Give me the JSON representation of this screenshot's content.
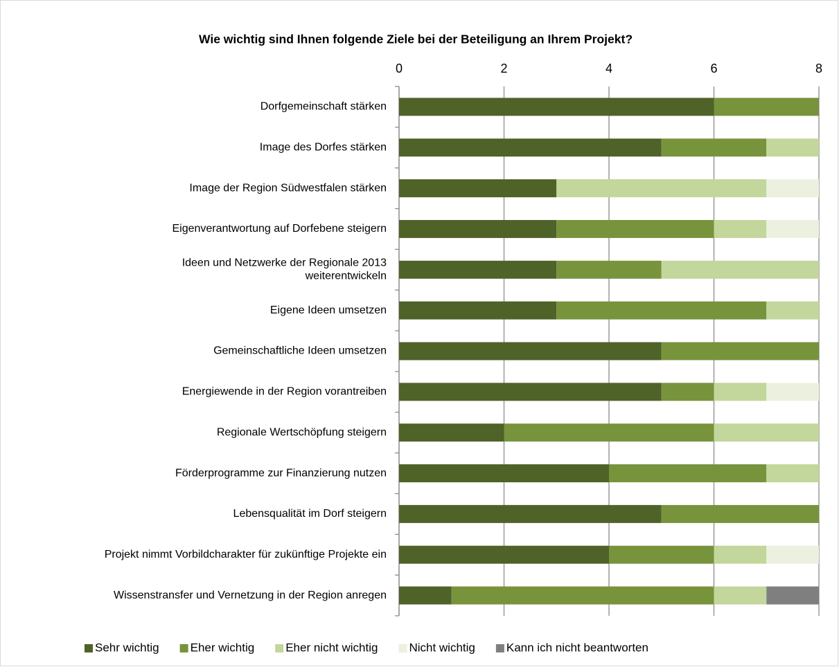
{
  "chart_data": {
    "type": "stacked_bar_horizontal",
    "title": "Wie wichtig sind Ihnen folgende Ziele bei der Beteiligung an Ihrem Projekt?",
    "categories": [
      "Dorfgemeinschaft stärken",
      "Image des Dorfes stärken",
      "Image der Region Südwestfalen stärken",
      "Eigenverantwortung auf Dorfebene steigern",
      "Ideen und Netzwerke der Regionale 2013\nweiterentwickeln",
      "Eigene Ideen umsetzen",
      "Gemeinschaftliche Ideen umsetzen",
      "Energiewende in der Region vorantreiben",
      "Regionale Wertschöpfung steigern",
      "Förderprogramme zur Finanzierung nutzen",
      "Lebensqualität im Dorf steigern",
      "Projekt nimmt Vorbildcharakter für zukünftige Projekte ein",
      "Wissenstransfer und Vernetzung in der Region anregen"
    ],
    "series": [
      {
        "name": "Sehr wichtig",
        "color": "#4f6228",
        "values": [
          6,
          5,
          3,
          3,
          3,
          3,
          5,
          5,
          2,
          4,
          5,
          4,
          1
        ]
      },
      {
        "name": "Eher wichtig",
        "color": "#77933c",
        "values": [
          2,
          2,
          0,
          3,
          2,
          4,
          3,
          1,
          4,
          3,
          3,
          2,
          5
        ]
      },
      {
        "name": "Eher nicht wichtig",
        "color": "#c3d69b",
        "values": [
          0,
          1,
          4,
          1,
          3,
          1,
          0,
          1,
          2,
          1,
          0,
          1,
          1
        ]
      },
      {
        "name": "Nicht wichtig",
        "color": "#ebf1de",
        "values": [
          0,
          0,
          1,
          1,
          0,
          0,
          0,
          1,
          0,
          0,
          0,
          1,
          0
        ]
      },
      {
        "name": "Kann ich nicht beantworten",
        "color": "#7f7f7f",
        "values": [
          0,
          0,
          0,
          0,
          0,
          0,
          0,
          0,
          0,
          0,
          0,
          0,
          1
        ]
      }
    ],
    "xlim": [
      0,
      8
    ],
    "xticks": [
      0,
      2,
      4,
      6,
      8
    ],
    "grid": true,
    "legend": "bottom"
  }
}
